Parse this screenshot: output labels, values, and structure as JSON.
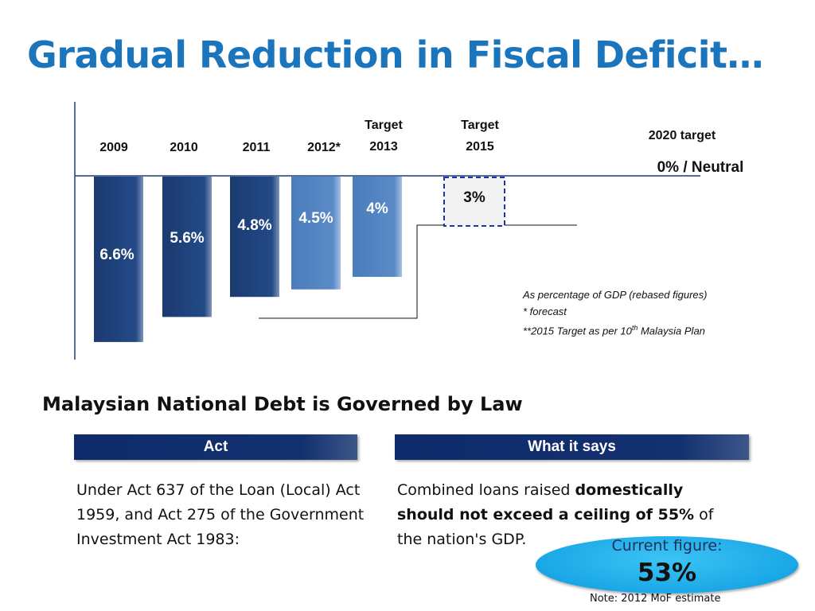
{
  "title": "Gradual Reduction in Fiscal Deficit…",
  "chart_data": {
    "type": "bar",
    "categories": [
      [
        "2009"
      ],
      [
        "2010"
      ],
      [
        "2011"
      ],
      [
        "2012*"
      ],
      [
        "Target",
        "2013"
      ],
      [
        "Target",
        "2015"
      ]
    ],
    "values": [
      6.6,
      5.6,
      4.8,
      4.5,
      4,
      3
    ],
    "data_labels": [
      "6.6%",
      "5.6%",
      "4.8%",
      "4.5%",
      "4%",
      "3%"
    ],
    "bar_colors": [
      "#1d3f77",
      "#1d3f77",
      "#1d3f77",
      "#4f81bd",
      "#4f81bd",
      "#f2f2f2"
    ],
    "target_2020": {
      "label": "2020 target",
      "value_text": "0% / Neutral",
      "value": 0
    },
    "ylim": [
      0,
      6.6
    ],
    "orientation": "downward from zero line",
    "notes": [
      "As percentage of GDP (rebased figures)",
      "* forecast",
      "**2015 Target as per 10",
      "th",
      " Malaysia Plan"
    ]
  },
  "section": {
    "title": "Malaysian National Debt is Governed by Law",
    "act_header": "Act",
    "says_header": "What it says",
    "act_text": "Under Act 637 of the Loan (Local) Act 1959, and Act 275 of the Government Investment Act 1983:",
    "says_text_1": "Combined loans raised ",
    "says_text_bold": "domestically should not exceed a ceiling of 55%",
    "says_text_2": " of the nation's GDP.",
    "current_label": "Current figure:",
    "current_value": "53%",
    "footnote": "Note: 2012 MoF estimate"
  }
}
